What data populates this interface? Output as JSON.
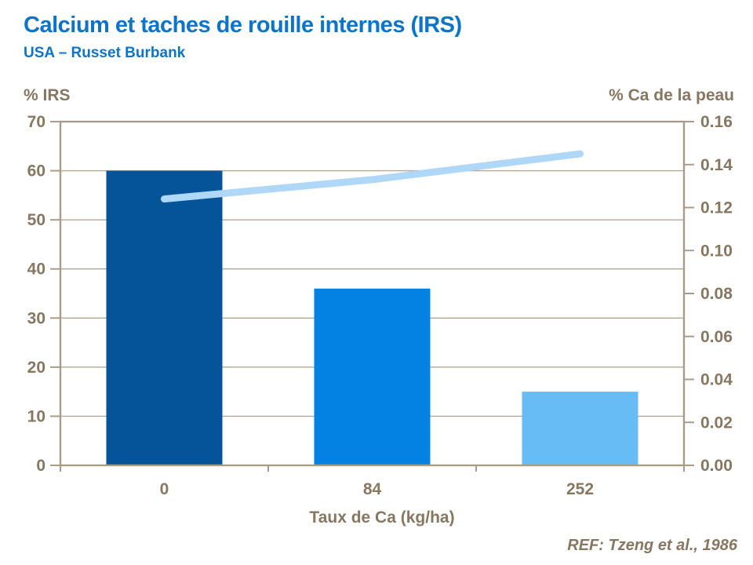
{
  "header": {
    "title": "Calcium et taches de rouille internes (IRS)",
    "subtitle": "USA – Russet Burbank"
  },
  "footer": {
    "reference": "REF: Tzeng et al., 1986"
  },
  "chart_data": {
    "type": "bar",
    "categories": [
      "0",
      "84",
      "252"
    ],
    "series": [
      {
        "name": "% IRS",
        "type": "bar",
        "axis": "left",
        "values": [
          60,
          36,
          15
        ]
      },
      {
        "name": "% Ca de la peau",
        "type": "line",
        "axis": "right",
        "values": [
          0.124,
          0.133,
          0.145
        ]
      }
    ],
    "left_axis": {
      "title": "% IRS",
      "min": 0,
      "max": 70,
      "step": 10,
      "decimals": 0
    },
    "right_axis": {
      "title": "% Ca de la peau",
      "min": 0,
      "max": 0.16,
      "step": 0.02,
      "decimals": 2
    },
    "x_axis": {
      "title": "Taux de Ca (kg/ha)"
    },
    "grid": {
      "horizontal": true,
      "interval_axis": "left"
    },
    "colors": {
      "title_text": "#0B74CB",
      "axis_text": "#877660",
      "axis_line": "#A89C89",
      "grid_line": "#B3A795",
      "bars": [
        "#05549A",
        "#0482E4",
        "#67BCF6"
      ],
      "line": "#AFD7F8",
      "background": "#FFFFFF"
    }
  }
}
